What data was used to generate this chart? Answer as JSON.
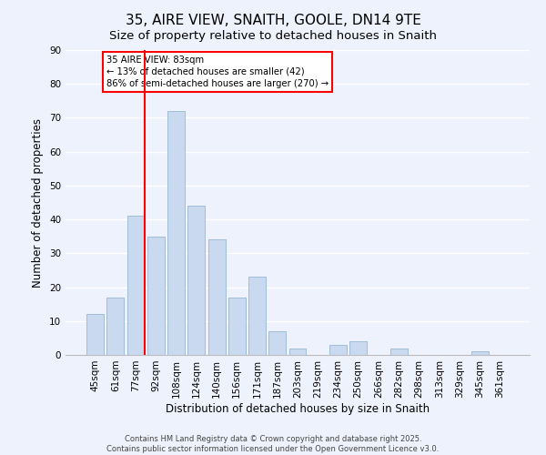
{
  "title": "35, AIRE VIEW, SNAITH, GOOLE, DN14 9TE",
  "subtitle": "Size of property relative to detached houses in Snaith",
  "xlabel": "Distribution of detached houses by size in Snaith",
  "ylabel": "Number of detached properties",
  "bar_labels": [
    "45sqm",
    "61sqm",
    "77sqm",
    "92sqm",
    "108sqm",
    "124sqm",
    "140sqm",
    "156sqm",
    "171sqm",
    "187sqm",
    "203sqm",
    "219sqm",
    "234sqm",
    "250sqm",
    "266sqm",
    "282sqm",
    "298sqm",
    "313sqm",
    "329sqm",
    "345sqm",
    "361sqm"
  ],
  "bar_values": [
    12,
    17,
    41,
    35,
    72,
    44,
    34,
    17,
    23,
    7,
    2,
    0,
    3,
    4,
    0,
    2,
    0,
    0,
    0,
    1,
    0
  ],
  "bar_color": "#c8d9f0",
  "bar_edge_color": "#a0bcd8",
  "ylim": [
    0,
    90
  ],
  "yticks": [
    0,
    10,
    20,
    30,
    40,
    50,
    60,
    70,
    80,
    90
  ],
  "property_label": "35 AIRE VIEW: 83sqm",
  "annotation_line1": "← 13% of detached houses are smaller (42)",
  "annotation_line2": "86% of semi-detached houses are larger (270) →",
  "footer_line1": "Contains HM Land Registry data © Crown copyright and database right 2025.",
  "footer_line2": "Contains public sector information licensed under the Open Government Licence v3.0.",
  "bg_color": "#eef2fc",
  "grid_color": "#ffffff",
  "title_fontsize": 11,
  "subtitle_fontsize": 9.5,
  "axis_label_fontsize": 8.5,
  "tick_fontsize": 7.5,
  "footer_fontsize": 6
}
